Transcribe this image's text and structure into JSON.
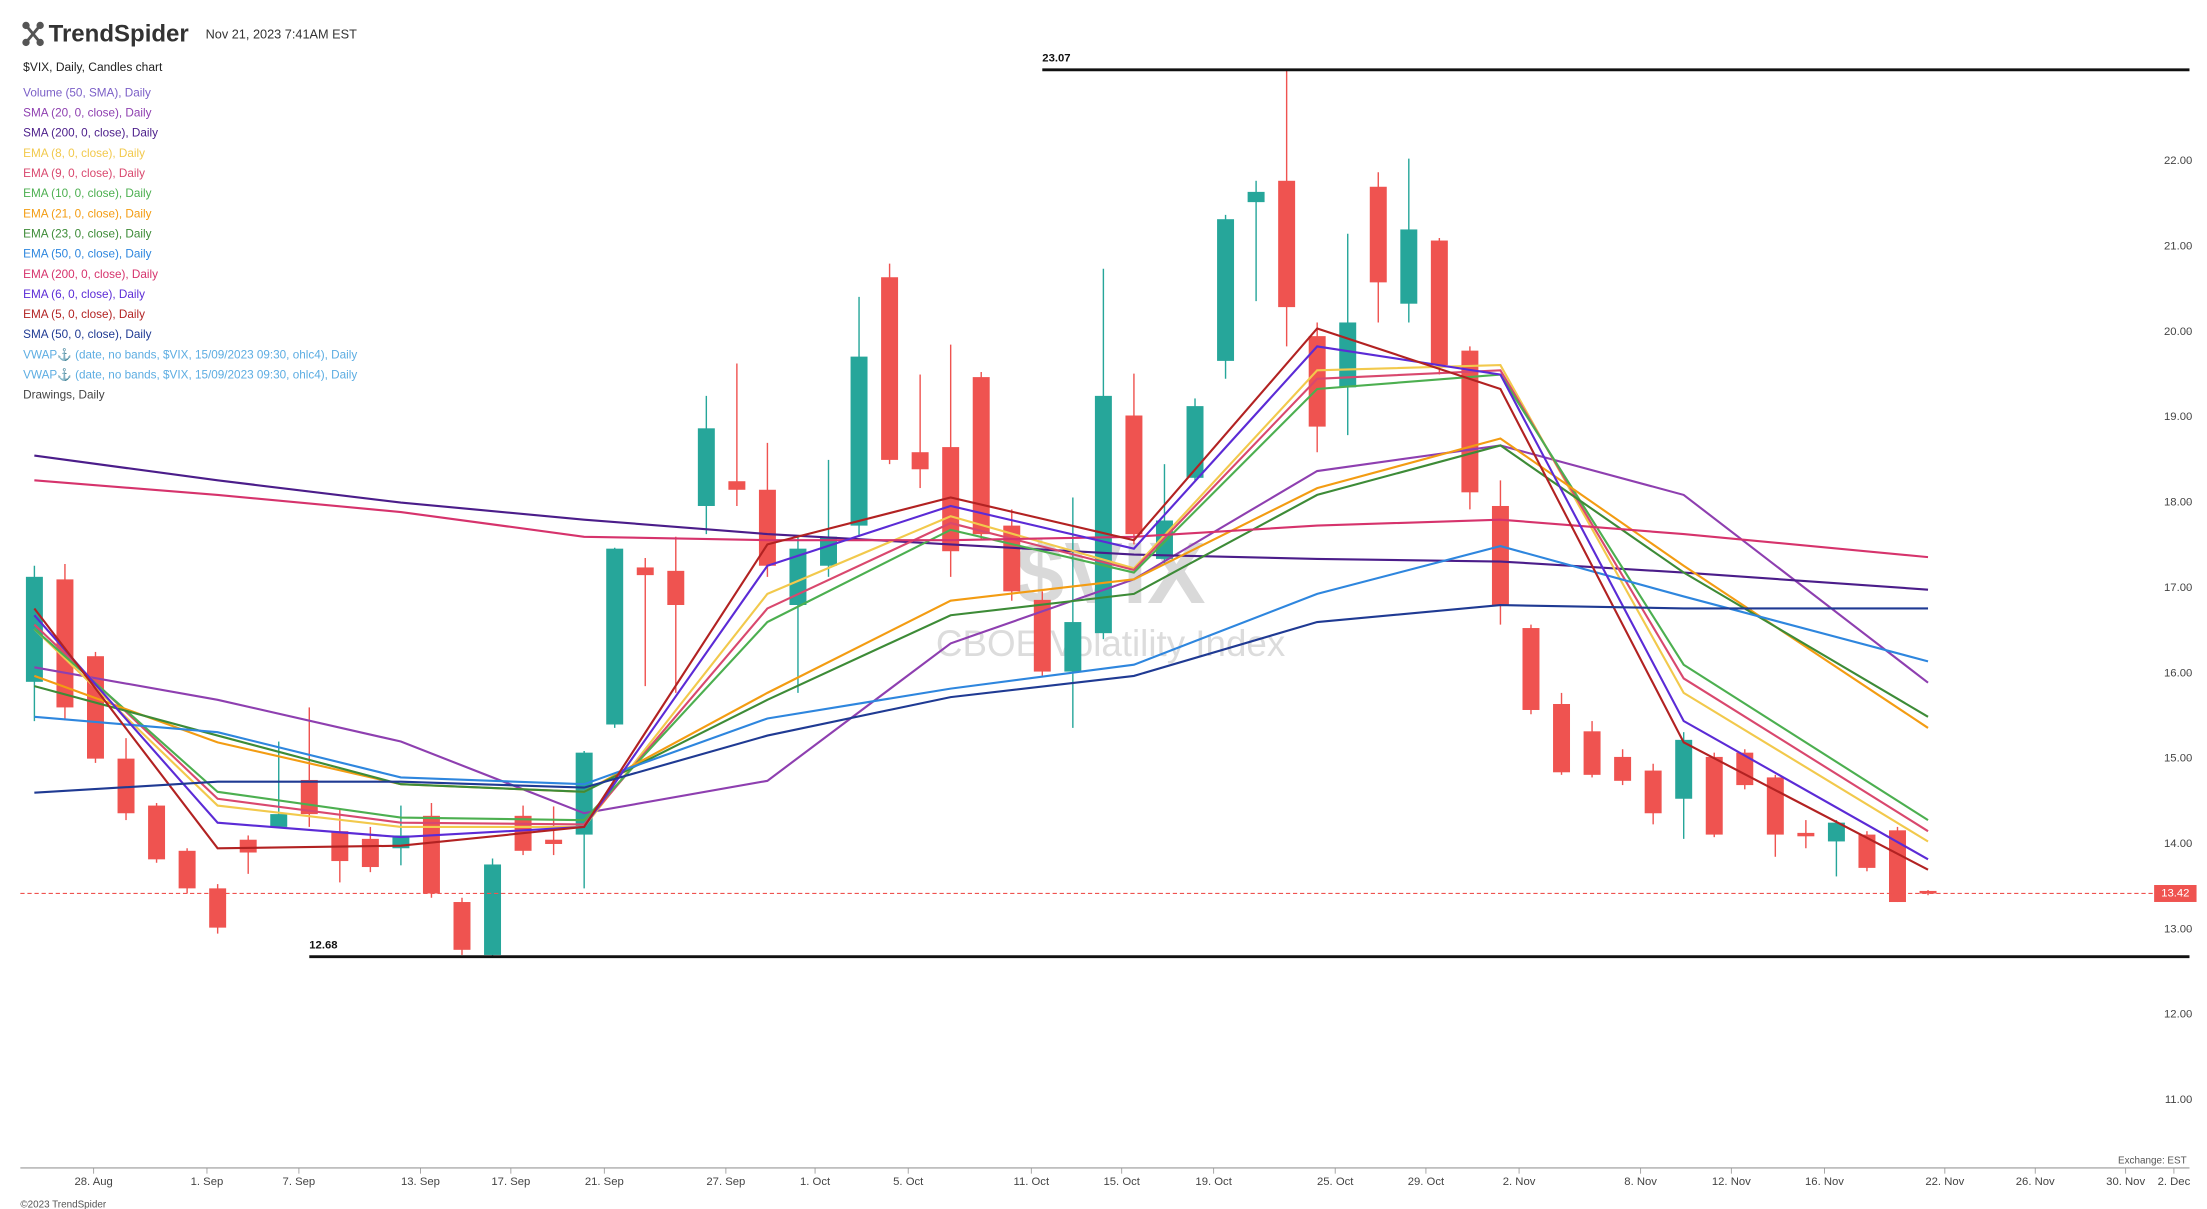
{
  "header": {
    "brand": "TrendSpider",
    "timestamp": "Nov 21, 2023 7:41AM EST"
  },
  "footer": {
    "exchange": "Exchange: EST",
    "copyright": "©2023 TrendSpider"
  },
  "chart_data": {
    "type": "candlestick",
    "symbol_label": "$VIX, Daily, Candles chart",
    "watermark": {
      "symbol": "$VIX",
      "name": "CBOE Volatility Index"
    },
    "up_color": "#26a69a",
    "down_color": "#ef5350",
    "open": [
      15.9,
      17.1,
      16.2,
      15.0,
      14.45,
      13.92,
      13.48,
      14.05,
      14.2,
      14.75,
      14.15,
      14.06,
      13.95,
      14.33,
      13.32,
      12.7,
      14.33,
      14.05,
      14.11,
      15.4,
      17.24,
      17.2,
      17.96,
      18.25,
      18.15,
      16.8,
      17.26,
      17.73,
      20.64,
      18.59,
      18.65,
      19.47,
      17.73,
      16.86,
      16.02,
      16.47,
      19.02,
      17.34,
      18.29,
      19.66,
      21.52,
      21.77,
      19.95,
      19.35,
      21.7,
      20.33,
      21.07,
      19.78,
      17.96,
      16.53,
      15.64,
      15.32,
      15.02,
      14.86,
      14.53,
      15.02,
      15.07,
      14.78,
      14.13,
      14.03,
      14.11,
      14.16,
      13.45
    ],
    "high": [
      17.26,
      17.28,
      16.25,
      15.24,
      14.48,
      13.95,
      13.53,
      14.1,
      15.2,
      15.6,
      14.4,
      14.2,
      14.45,
      14.48,
      13.37,
      13.83,
      14.45,
      14.44,
      15.09,
      17.47,
      17.35,
      17.6,
      19.25,
      19.63,
      18.7,
      17.6,
      18.5,
      20.41,
      20.8,
      19.5,
      19.85,
      19.53,
      17.92,
      16.96,
      18.06,
      20.74,
      19.51,
      18.45,
      19.22,
      21.37,
      21.77,
      23.07,
      20.11,
      21.15,
      21.87,
      22.03,
      21.1,
      19.83,
      18.26,
      16.57,
      15.77,
      15.44,
      15.11,
      14.94,
      15.31,
      15.07,
      15.11,
      14.81,
      14.28,
      14.28,
      14.15,
      14.2,
      13.46
    ],
    "low": [
      15.44,
      15.45,
      14.95,
      14.28,
      13.78,
      13.42,
      12.95,
      13.65,
      14.2,
      14.2,
      13.55,
      13.67,
      13.75,
      13.37,
      12.7,
      12.68,
      13.87,
      13.87,
      13.48,
      15.36,
      15.85,
      15.77,
      17.63,
      17.96,
      17.13,
      15.77,
      17.13,
      17.6,
      18.45,
      18.17,
      17.13,
      17.56,
      16.85,
      15.97,
      15.36,
      16.4,
      17.51,
      17.29,
      18.26,
      19.45,
      20.36,
      19.83,
      18.59,
      18.79,
      20.11,
      20.11,
      19.5,
      17.92,
      16.57,
      15.52,
      14.81,
      14.78,
      14.69,
      14.23,
      14.06,
      14.08,
      14.64,
      13.85,
      13.95,
      13.62,
      13.68,
      13.32,
      13.4
    ],
    "close": [
      17.13,
      15.6,
      15.0,
      14.36,
      13.82,
      13.48,
      13.02,
      13.9,
      14.35,
      14.35,
      13.8,
      13.73,
      14.1,
      13.42,
      12.76,
      13.76,
      13.92,
      14.0,
      15.07,
      17.46,
      17.15,
      16.8,
      18.87,
      18.15,
      17.26,
      17.46,
      17.6,
      19.71,
      18.5,
      18.39,
      17.43,
      17.63,
      16.96,
      16.02,
      16.6,
      19.25,
      17.63,
      17.79,
      19.13,
      21.32,
      21.64,
      20.29,
      18.89,
      20.11,
      20.58,
      21.2,
      19.61,
      18.12,
      16.8,
      15.57,
      14.84,
      14.81,
      14.74,
      14.36,
      15.22,
      14.11,
      14.69,
      14.11,
      14.09,
      14.25,
      13.72,
      13.32,
      13.42
    ],
    "series": [
      {
        "name": "Volume (50, SMA), Daily",
        "color": "#7b5fc7"
      },
      {
        "name": "SMA (20, 0, close), Daily",
        "color": "#8e3fb0",
        "x": [
          0,
          6,
          12,
          18,
          24,
          30,
          36,
          42,
          48,
          54,
          62
        ],
        "values": [
          16.07,
          15.69,
          15.2,
          14.36,
          14.74,
          16.35,
          17.1,
          18.37,
          18.67,
          18.09,
          15.89
        ]
      },
      {
        "name": "SMA (200, 0, close), Daily",
        "color": "#4b1d8a",
        "x": [
          0,
          6,
          12,
          18,
          24,
          30,
          36,
          42,
          48,
          54,
          62
        ],
        "values": [
          18.55,
          18.26,
          18.0,
          17.8,
          17.63,
          17.51,
          17.39,
          17.34,
          17.31,
          17.18,
          16.98
        ]
      },
      {
        "name": "EMA (8, 0, close), Daily",
        "color": "#f2c94c",
        "x": [
          0,
          6,
          12,
          18,
          24,
          30,
          36,
          42,
          48,
          54,
          62
        ],
        "values": [
          16.52,
          14.45,
          14.2,
          14.2,
          16.93,
          17.84,
          17.23,
          19.55,
          19.61,
          15.77,
          14.03
        ]
      },
      {
        "name": "EMA (9, 0, close), Daily",
        "color": "#d9486e",
        "x": [
          0,
          6,
          12,
          18,
          24,
          30,
          36,
          42,
          48,
          54,
          62
        ],
        "values": [
          16.57,
          14.53,
          14.25,
          14.23,
          16.76,
          17.76,
          17.21,
          19.45,
          19.55,
          15.94,
          14.15
        ]
      },
      {
        "name": "EMA (10, 0, close), Daily",
        "color": "#4caf50",
        "x": [
          0,
          6,
          12,
          18,
          24,
          30,
          36,
          42,
          48,
          54,
          62
        ],
        "values": [
          16.52,
          14.61,
          14.31,
          14.28,
          16.6,
          17.68,
          17.18,
          19.33,
          19.5,
          16.1,
          14.28
        ]
      },
      {
        "name": "EMA (21, 0, close), Daily",
        "color": "#f39c12",
        "x": [
          0,
          6,
          12,
          18,
          24,
          30,
          36,
          42,
          48,
          54,
          62
        ],
        "values": [
          15.97,
          15.19,
          14.7,
          14.61,
          15.77,
          16.85,
          17.1,
          18.17,
          18.75,
          17.26,
          15.36
        ]
      },
      {
        "name": "EMA (23, 0, close), Daily",
        "color": "#3d8b37",
        "x": [
          0,
          6,
          12,
          18,
          24,
          30,
          36,
          42,
          48,
          54,
          62
        ],
        "values": [
          15.85,
          15.27,
          14.7,
          14.61,
          15.69,
          16.68,
          16.93,
          18.09,
          18.67,
          17.18,
          15.49
        ]
      },
      {
        "name": "EMA (50, 0, close), Daily",
        "color": "#2e86de",
        "x": [
          0,
          6,
          12,
          18,
          24,
          30,
          36,
          42,
          48,
          54,
          62
        ],
        "values": [
          15.49,
          15.31,
          14.78,
          14.7,
          15.47,
          15.82,
          16.1,
          16.93,
          17.49,
          16.9,
          16.14
        ]
      },
      {
        "name": "EMA (200, 0, close), Daily",
        "color": "#d6336c",
        "x": [
          0,
          6,
          12,
          18,
          24,
          30,
          36,
          42,
          48,
          54,
          62
        ],
        "values": [
          18.26,
          18.09,
          17.89,
          17.6,
          17.56,
          17.56,
          17.6,
          17.73,
          17.8,
          17.63,
          17.36
        ]
      },
      {
        "name": "EMA (6, 0, close), Daily",
        "color": "#5b2bd6",
        "x": [
          0,
          6,
          12,
          18,
          24,
          30,
          36,
          42,
          48,
          54,
          62
        ],
        "values": [
          16.68,
          14.25,
          14.08,
          14.2,
          17.26,
          17.96,
          17.46,
          19.83,
          19.5,
          15.44,
          13.82
        ]
      },
      {
        "name": "EMA (5, 0, close), Daily",
        "color": "#b22222",
        "x": [
          0,
          6,
          12,
          18,
          24,
          30,
          36,
          42,
          48,
          54,
          62
        ],
        "values": [
          16.76,
          13.95,
          13.98,
          14.2,
          17.51,
          18.06,
          17.56,
          20.04,
          19.33,
          15.19,
          13.7
        ]
      },
      {
        "name": "SMA (50, 0, close), Daily",
        "color": "#1f3a93",
        "x": [
          0,
          6,
          12,
          18,
          24,
          30,
          36,
          42,
          48,
          54,
          62
        ],
        "values": [
          14.6,
          14.73,
          14.73,
          14.66,
          15.27,
          15.72,
          15.97,
          16.6,
          16.8,
          16.76,
          16.76
        ]
      },
      {
        "name": "VWAP⚓ (date, no bands, $VIX, 15/09/2023 09:30, ohlc4), Daily",
        "color": "#5dade2"
      },
      {
        "name": "VWAP⚓ (date, no bands, $VIX, 15/09/2023 09:30, ohlc4), Daily",
        "color": "#5dade2"
      },
      {
        "name": "Drawings, Daily",
        "color": "#444444"
      }
    ],
    "levels": [
      {
        "value": 23.07,
        "start": 33
      },
      {
        "value": 12.68,
        "start": 9
      }
    ],
    "price_line_color": "#ef5350",
    "xlim": [
      -0.46,
      70.56
    ],
    "xticks": [
      {
        "value": 1.94,
        "label": "28. Aug"
      },
      {
        "value": 5.65,
        "label": "1. Sep"
      },
      {
        "value": 8.66,
        "label": "7. Sep"
      },
      {
        "value": 12.64,
        "label": "13. Sep"
      },
      {
        "value": 15.6,
        "label": "17. Sep"
      },
      {
        "value": 18.66,
        "label": "21. Sep"
      },
      {
        "value": 22.64,
        "label": "27. Sep"
      },
      {
        "value": 25.56,
        "label": "1. Oct"
      },
      {
        "value": 28.61,
        "label": "5. Oct"
      },
      {
        "value": 32.64,
        "label": "11. Oct"
      },
      {
        "value": 35.6,
        "label": "15. Oct"
      },
      {
        "value": 38.61,
        "label": "19. Oct"
      },
      {
        "value": 42.59,
        "label": "25. Oct"
      },
      {
        "value": 45.56,
        "label": "29. Oct"
      },
      {
        "value": 48.61,
        "label": "2. Nov"
      },
      {
        "value": 52.59,
        "label": "8. Nov"
      },
      {
        "value": 55.56,
        "label": "12. Nov"
      },
      {
        "value": 58.61,
        "label": "16. Nov"
      },
      {
        "value": 62.55,
        "label": "22. Nov"
      },
      {
        "value": 65.51,
        "label": "26. Nov"
      },
      {
        "value": 68.47,
        "label": "30. Nov"
      },
      {
        "value": 70.05,
        "label": "2. Dec"
      }
    ],
    "ylim": [
      10.3,
      23.3
    ],
    "yticks": [
      {
        "value": 11,
        "label": "11.00"
      },
      {
        "value": 12,
        "label": "12.00"
      },
      {
        "value": 13,
        "label": "13.00"
      },
      {
        "value": 14,
        "label": "14.00"
      },
      {
        "value": 15,
        "label": "15.00"
      },
      {
        "value": 16,
        "label": "16.00"
      },
      {
        "value": 17,
        "label": "17.00"
      },
      {
        "value": 18,
        "label": "18.00"
      },
      {
        "value": 19,
        "label": "19.00"
      },
      {
        "value": 20,
        "label": "20.00"
      },
      {
        "value": 21,
        "label": "21.00"
      },
      {
        "value": 22,
        "label": "22.00"
      }
    ]
  }
}
